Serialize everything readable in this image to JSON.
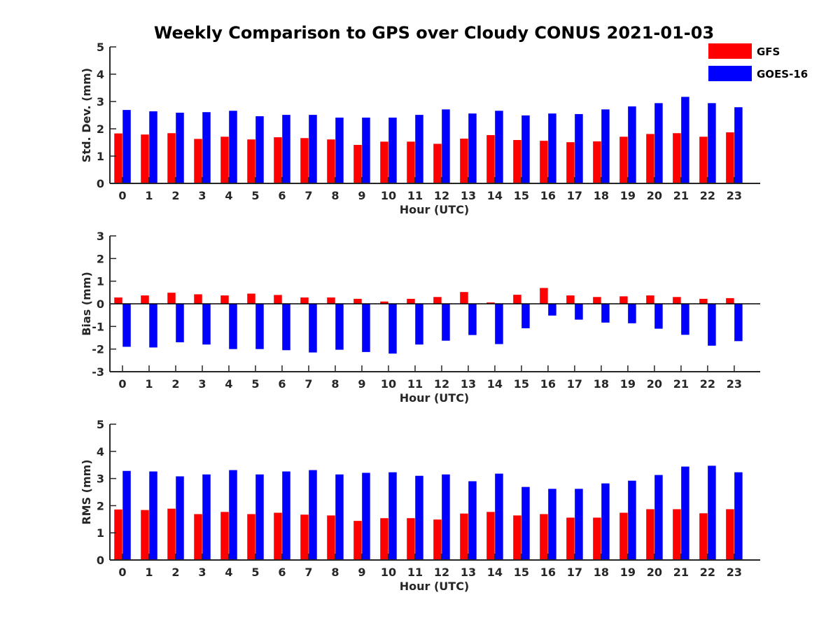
{
  "title": "Weekly Comparison to GPS over Cloudy CONUS 2021-01-03",
  "legend": [
    {
      "name": "GFS",
      "color": "#ff0000"
    },
    {
      "name": "GOES-16",
      "color": "#0000ff"
    }
  ],
  "chart_data": [
    {
      "type": "bar",
      "ylabel": "Std. Dev. (mm)",
      "xlabel": "Hour (UTC)",
      "ylim": [
        0,
        5
      ],
      "yticks": [
        0,
        1,
        2,
        3,
        4,
        5
      ],
      "categories": [
        "0",
        "1",
        "2",
        "3",
        "4",
        "5",
        "6",
        "7",
        "8",
        "9",
        "10",
        "11",
        "12",
        "13",
        "14",
        "15",
        "16",
        "17",
        "18",
        "19",
        "20",
        "21",
        "22",
        "23"
      ],
      "series": [
        {
          "name": "GFS",
          "values": [
            1.83,
            1.79,
            1.84,
            1.63,
            1.71,
            1.61,
            1.69,
            1.66,
            1.61,
            1.41,
            1.53,
            1.53,
            1.45,
            1.64,
            1.77,
            1.59,
            1.56,
            1.51,
            1.54,
            1.71,
            1.81,
            1.84,
            1.71,
            1.87
          ]
        },
        {
          "name": "GOES-16",
          "values": [
            2.69,
            2.64,
            2.59,
            2.61,
            2.66,
            2.46,
            2.51,
            2.51,
            2.41,
            2.41,
            2.41,
            2.51,
            2.71,
            2.56,
            2.66,
            2.49,
            2.56,
            2.54,
            2.71,
            2.82,
            2.94,
            3.17,
            2.94,
            2.79
          ]
        }
      ]
    },
    {
      "type": "bar",
      "ylabel": "Bias (mm)",
      "xlabel": "Hour (UTC)",
      "ylim": [
        -3,
        3
      ],
      "yticks": [
        -3,
        -2,
        -1,
        0,
        1,
        2,
        3
      ],
      "categories": [
        "0",
        "1",
        "2",
        "3",
        "4",
        "5",
        "6",
        "7",
        "8",
        "9",
        "10",
        "11",
        "12",
        "13",
        "14",
        "15",
        "16",
        "17",
        "18",
        "19",
        "20",
        "21",
        "22",
        "23"
      ],
      "series": [
        {
          "name": "GFS",
          "values": [
            0.28,
            0.37,
            0.49,
            0.42,
            0.37,
            0.45,
            0.39,
            0.28,
            0.28,
            0.22,
            0.1,
            0.22,
            0.3,
            0.52,
            0.06,
            0.4,
            0.7,
            0.37,
            0.3,
            0.33,
            0.37,
            0.3,
            0.22,
            0.25
          ]
        },
        {
          "name": "GOES-16",
          "values": [
            -1.9,
            -1.93,
            -1.7,
            -1.8,
            -2.0,
            -2.0,
            -2.05,
            -2.15,
            -2.03,
            -2.13,
            -2.2,
            -1.8,
            -1.63,
            -1.38,
            -1.78,
            -1.08,
            -0.52,
            -0.7,
            -0.83,
            -0.86,
            -1.1,
            -1.37,
            -1.85,
            -1.65
          ]
        }
      ]
    },
    {
      "type": "bar",
      "ylabel": "RMS (mm)",
      "xlabel": "Hour (UTC)",
      "ylim": [
        0,
        5
      ],
      "yticks": [
        0,
        1,
        2,
        3,
        4,
        5
      ],
      "categories": [
        "0",
        "1",
        "2",
        "3",
        "4",
        "5",
        "6",
        "7",
        "8",
        "9",
        "10",
        "11",
        "12",
        "13",
        "14",
        "15",
        "16",
        "17",
        "18",
        "19",
        "20",
        "21",
        "22",
        "23"
      ],
      "series": [
        {
          "name": "GFS",
          "values": [
            1.86,
            1.84,
            1.89,
            1.69,
            1.77,
            1.69,
            1.74,
            1.67,
            1.64,
            1.44,
            1.54,
            1.54,
            1.49,
            1.71,
            1.77,
            1.64,
            1.69,
            1.56,
            1.56,
            1.74,
            1.87,
            1.87,
            1.72,
            1.87
          ]
        },
        {
          "name": "GOES-16",
          "values": [
            3.28,
            3.26,
            3.08,
            3.15,
            3.31,
            3.15,
            3.26,
            3.31,
            3.15,
            3.21,
            3.23,
            3.1,
            3.15,
            2.9,
            3.18,
            2.69,
            2.62,
            2.62,
            2.82,
            2.92,
            3.13,
            3.44,
            3.47,
            3.23
          ]
        }
      ]
    }
  ]
}
